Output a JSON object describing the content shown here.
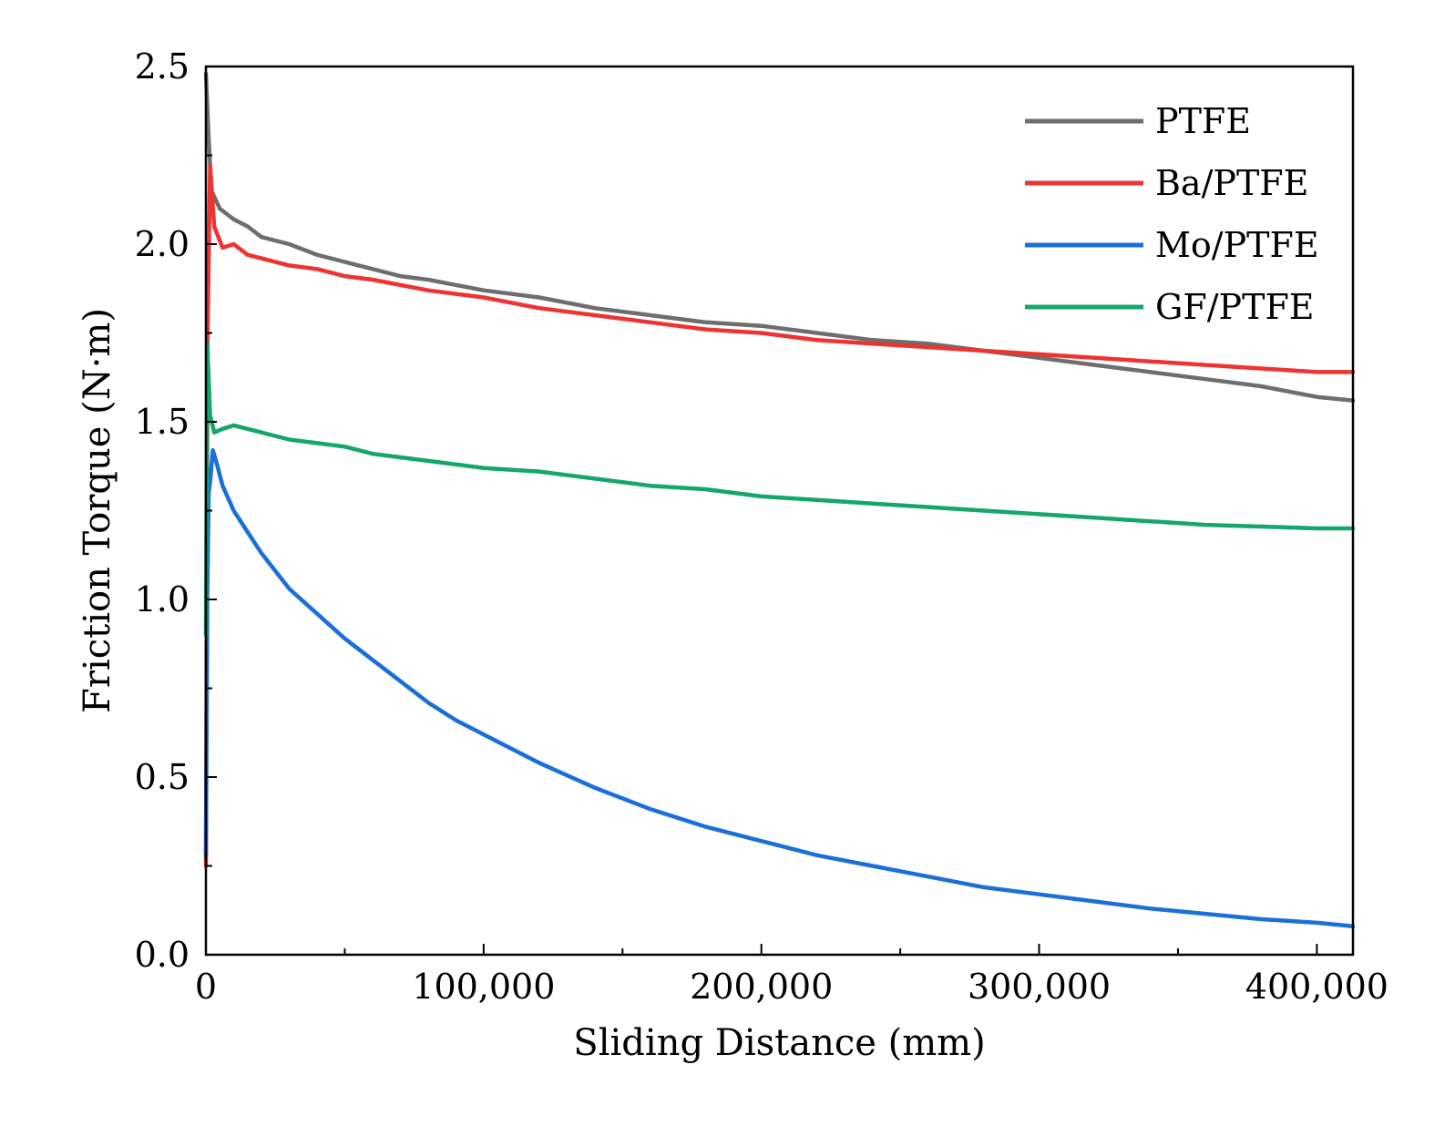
{
  "chart_data": {
    "type": "line",
    "title": "",
    "xlabel": "Sliding Distance (mm)",
    "ylabel": "Friction Torque (N·m)",
    "xlim": [
      0,
      413000
    ],
    "ylim": [
      0,
      2.5
    ],
    "grid": false,
    "legend_position": "top-right",
    "x_ticks": [
      {
        "value": 0,
        "label": "0"
      },
      {
        "value": 100000,
        "label": "100,000"
      },
      {
        "value": 200000,
        "label": "200,000"
      },
      {
        "value": 300000,
        "label": "300,000"
      },
      {
        "value": 400000,
        "label": "400,000"
      }
    ],
    "y_ticks": [
      {
        "value": 0,
        "label": "0.0"
      },
      {
        "value": 0.5,
        "label": "0.5"
      },
      {
        "value": 1.0,
        "label": "1.0"
      },
      {
        "value": 1.5,
        "label": "1.5"
      },
      {
        "value": 2.0,
        "label": "2.0"
      },
      {
        "value": 2.5,
        "label": "2.5"
      }
    ],
    "series": [
      {
        "name": "PTFE",
        "color": "#6e6e6e",
        "x": [
          0,
          1000,
          2000,
          5000,
          10000,
          15000,
          20000,
          30000,
          40000,
          50000,
          60000,
          70000,
          80000,
          100000,
          120000,
          140000,
          160000,
          180000,
          200000,
          220000,
          240000,
          260000,
          280000,
          300000,
          320000,
          340000,
          360000,
          380000,
          400000,
          413000
        ],
        "values": [
          2.48,
          2.3,
          2.15,
          2.1,
          2.07,
          2.05,
          2.02,
          2.0,
          1.97,
          1.95,
          1.93,
          1.91,
          1.9,
          1.87,
          1.85,
          1.82,
          1.8,
          1.78,
          1.77,
          1.75,
          1.73,
          1.72,
          1.7,
          1.68,
          1.66,
          1.64,
          1.62,
          1.6,
          1.57,
          1.56
        ]
      },
      {
        "name": "Ba/PTFE",
        "color": "#ee3333",
        "x": [
          0,
          600,
          1500,
          3000,
          6000,
          10000,
          15000,
          20000,
          30000,
          40000,
          50000,
          60000,
          80000,
          100000,
          120000,
          140000,
          160000,
          180000,
          200000,
          220000,
          240000,
          260000,
          280000,
          300000,
          320000,
          340000,
          360000,
          380000,
          400000,
          413000
        ],
        "values": [
          0.25,
          1.75,
          2.22,
          2.05,
          1.99,
          2.0,
          1.97,
          1.96,
          1.94,
          1.93,
          1.91,
          1.9,
          1.87,
          1.85,
          1.82,
          1.8,
          1.78,
          1.76,
          1.75,
          1.73,
          1.72,
          1.71,
          1.7,
          1.69,
          1.68,
          1.67,
          1.66,
          1.65,
          1.64,
          1.64
        ]
      },
      {
        "name": "Mo/PTFE",
        "color": "#1a6fd8",
        "x": [
          0,
          500,
          1000,
          1500,
          2500,
          4000,
          6000,
          10000,
          15000,
          20000,
          30000,
          40000,
          50000,
          60000,
          70000,
          80000,
          90000,
          100000,
          120000,
          140000,
          160000,
          180000,
          200000,
          220000,
          240000,
          260000,
          280000,
          300000,
          320000,
          340000,
          360000,
          380000,
          400000,
          413000
        ],
        "values": [
          0.28,
          1.0,
          1.3,
          1.33,
          1.42,
          1.38,
          1.32,
          1.25,
          1.19,
          1.13,
          1.03,
          0.96,
          0.89,
          0.83,
          0.77,
          0.71,
          0.66,
          0.62,
          0.54,
          0.47,
          0.41,
          0.36,
          0.32,
          0.28,
          0.25,
          0.22,
          0.19,
          0.17,
          0.15,
          0.13,
          0.115,
          0.1,
          0.09,
          0.08
        ]
      },
      {
        "name": "GF/PTFE",
        "color": "#14a66a",
        "x": [
          0,
          500,
          1500,
          3000,
          6000,
          10000,
          15000,
          20000,
          30000,
          40000,
          50000,
          60000,
          80000,
          100000,
          120000,
          140000,
          160000,
          180000,
          200000,
          220000,
          240000,
          260000,
          280000,
          300000,
          320000,
          340000,
          360000,
          380000,
          400000,
          413000
        ],
        "values": [
          0.9,
          1.72,
          1.52,
          1.47,
          1.48,
          1.49,
          1.48,
          1.47,
          1.45,
          1.44,
          1.43,
          1.41,
          1.39,
          1.37,
          1.36,
          1.34,
          1.32,
          1.31,
          1.29,
          1.28,
          1.27,
          1.26,
          1.25,
          1.24,
          1.23,
          1.22,
          1.21,
          1.205,
          1.2,
          1.2
        ]
      }
    ]
  }
}
